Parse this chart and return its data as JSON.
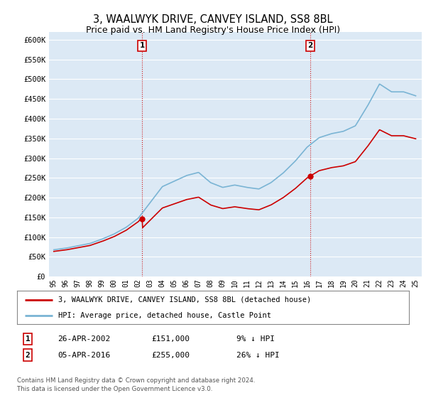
{
  "title": "3, WAALWYK DRIVE, CANVEY ISLAND, SS8 8BL",
  "subtitle": "Price paid vs. HM Land Registry's House Price Index (HPI)",
  "title_fontsize": 10.5,
  "subtitle_fontsize": 9,
  "x_start_year": 1995,
  "x_end_year": 2025,
  "ylim": [
    0,
    620000
  ],
  "yticks": [
    0,
    50000,
    100000,
    150000,
    200000,
    250000,
    300000,
    350000,
    400000,
    450000,
    500000,
    550000,
    600000
  ],
  "background_color": "#ffffff",
  "plot_bg_color": "#dce9f5",
  "grid_color": "#ffffff",
  "hpi_color": "#7ab4d4",
  "price_color": "#cc0000",
  "vline_color": "#cc0000",
  "marker1_year": 2002.32,
  "marker1_price": 151000,
  "marker2_year": 2016.27,
  "marker2_price": 255000,
  "sale1_label": "1",
  "sale2_label": "2",
  "sale1_date": "26-APR-2002",
  "sale1_price": "£151,000",
  "sale1_hpi": "9% ↓ HPI",
  "sale2_date": "05-APR-2016",
  "sale2_price": "£255,000",
  "sale2_hpi": "26% ↓ HPI",
  "legend_label1": "3, WAALWYK DRIVE, CANVEY ISLAND, SS8 8BL (detached house)",
  "legend_label2": "HPI: Average price, detached house, Castle Point",
  "footer1": "Contains HM Land Registry data © Crown copyright and database right 2024.",
  "footer2": "This data is licensed under the Open Government Licence v3.0."
}
